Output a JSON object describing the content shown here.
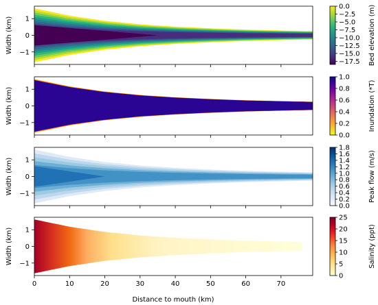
{
  "chart_data": {
    "type": "heatmap",
    "shared_xlabel": "Distance to mouth (km)",
    "xlim": [
      0,
      79
    ],
    "xticks": [
      0,
      10,
      20,
      30,
      40,
      50,
      60,
      70
    ],
    "panels": [
      {
        "ylabel": "Width (km)",
        "ylim": [
          -1.75,
          1.75
        ],
        "yticks": [
          -1,
          0,
          1
        ],
        "colorbar_label": "Bed elevation (m)",
        "colormap": "viridis",
        "cbar_range": [
          -18.5,
          0
        ],
        "cbar_ticks": [
          "0.0",
          "−2.5",
          "−5.0",
          "−7.5",
          "−10.0",
          "−12.5",
          "−15.0",
          "−17.5"
        ],
        "cbar_tick_values": [
          0,
          -2.5,
          -5,
          -7.5,
          -10,
          -12.5,
          -15,
          -17.5
        ],
        "fill": "bands",
        "band_colors": [
          "#fde725",
          "#b8de29",
          "#6ccd5a",
          "#35b779",
          "#1f9e89",
          "#26828e",
          "#31688e",
          "#3e4989",
          "#472d7b",
          "#440154"
        ],
        "core_end_km": 35
      },
      {
        "ylabel": "Width (km)",
        "ylim": [
          -1.75,
          1.75
        ],
        "yticks": [
          -1,
          0,
          1
        ],
        "colorbar_label": "Inundation (*T)",
        "colormap": "plasma_r",
        "cbar_range": [
          0,
          1
        ],
        "cbar_ticks": [
          "1.0",
          "0.8",
          "0.6",
          "0.4",
          "0.2",
          "0.0"
        ],
        "cbar_tick_values": [
          1,
          0.8,
          0.6,
          0.4,
          0.2,
          0
        ],
        "fill": "edge",
        "band_colors": [
          "#2a0593",
          "#e55c30",
          "#fba238",
          "#fcd225"
        ]
      },
      {
        "ylabel": "Width (km)",
        "ylim": [
          -1.75,
          1.75
        ],
        "yticks": [
          -1,
          0,
          1
        ],
        "colorbar_label": "Peak flow (m/s)",
        "colormap": "Blues",
        "cbar_range": [
          0,
          1.8
        ],
        "cbar_ticks": [
          "1.8",
          "1.6",
          "1.4",
          "1.2",
          "1.0",
          "0.8",
          "0.6",
          "0.4",
          "0.2",
          "0.0"
        ],
        "cbar_tick_values": [
          1.8,
          1.6,
          1.4,
          1.2,
          1.0,
          0.8,
          0.6,
          0.4,
          0.2,
          0
        ],
        "fill": "bands",
        "band_colors": [
          "#deebf7",
          "#bdd7ee",
          "#9ecae1",
          "#6baed6",
          "#4292c6",
          "#2171b5"
        ],
        "core_end_km": 20
      },
      {
        "ylabel": "Width (km)",
        "ylim": [
          -1.75,
          1.75
        ],
        "yticks": [
          -1,
          0,
          1
        ],
        "colorbar_label": "Salinity (ppt)",
        "colormap": "YlOrRd",
        "cbar_range": [
          0,
          25
        ],
        "cbar_ticks": [
          "25",
          "20",
          "15",
          "10",
          "5",
          "0"
        ],
        "cbar_tick_values": [
          25,
          20,
          15,
          10,
          5,
          0
        ],
        "fill": "gradient",
        "gradient_stops": [
          {
            "km": 0,
            "color": "#a50026"
          },
          {
            "km": 5,
            "color": "#d7301f"
          },
          {
            "km": 10,
            "color": "#f16913"
          },
          {
            "km": 15,
            "color": "#fdae61"
          },
          {
            "km": 22,
            "color": "#fee08b"
          },
          {
            "km": 35,
            "color": "#fff3c4"
          },
          {
            "km": 76,
            "color": "#ffffd9"
          }
        ],
        "x_end_km": 76
      }
    ],
    "estuary_half_width_km": {
      "x": [
        0,
        10,
        20,
        30,
        40,
        50,
        60,
        70,
        79
      ],
      "y": [
        1.62,
        1.18,
        0.87,
        0.66,
        0.52,
        0.42,
        0.34,
        0.29,
        0.25
      ]
    },
    "grid": false
  }
}
